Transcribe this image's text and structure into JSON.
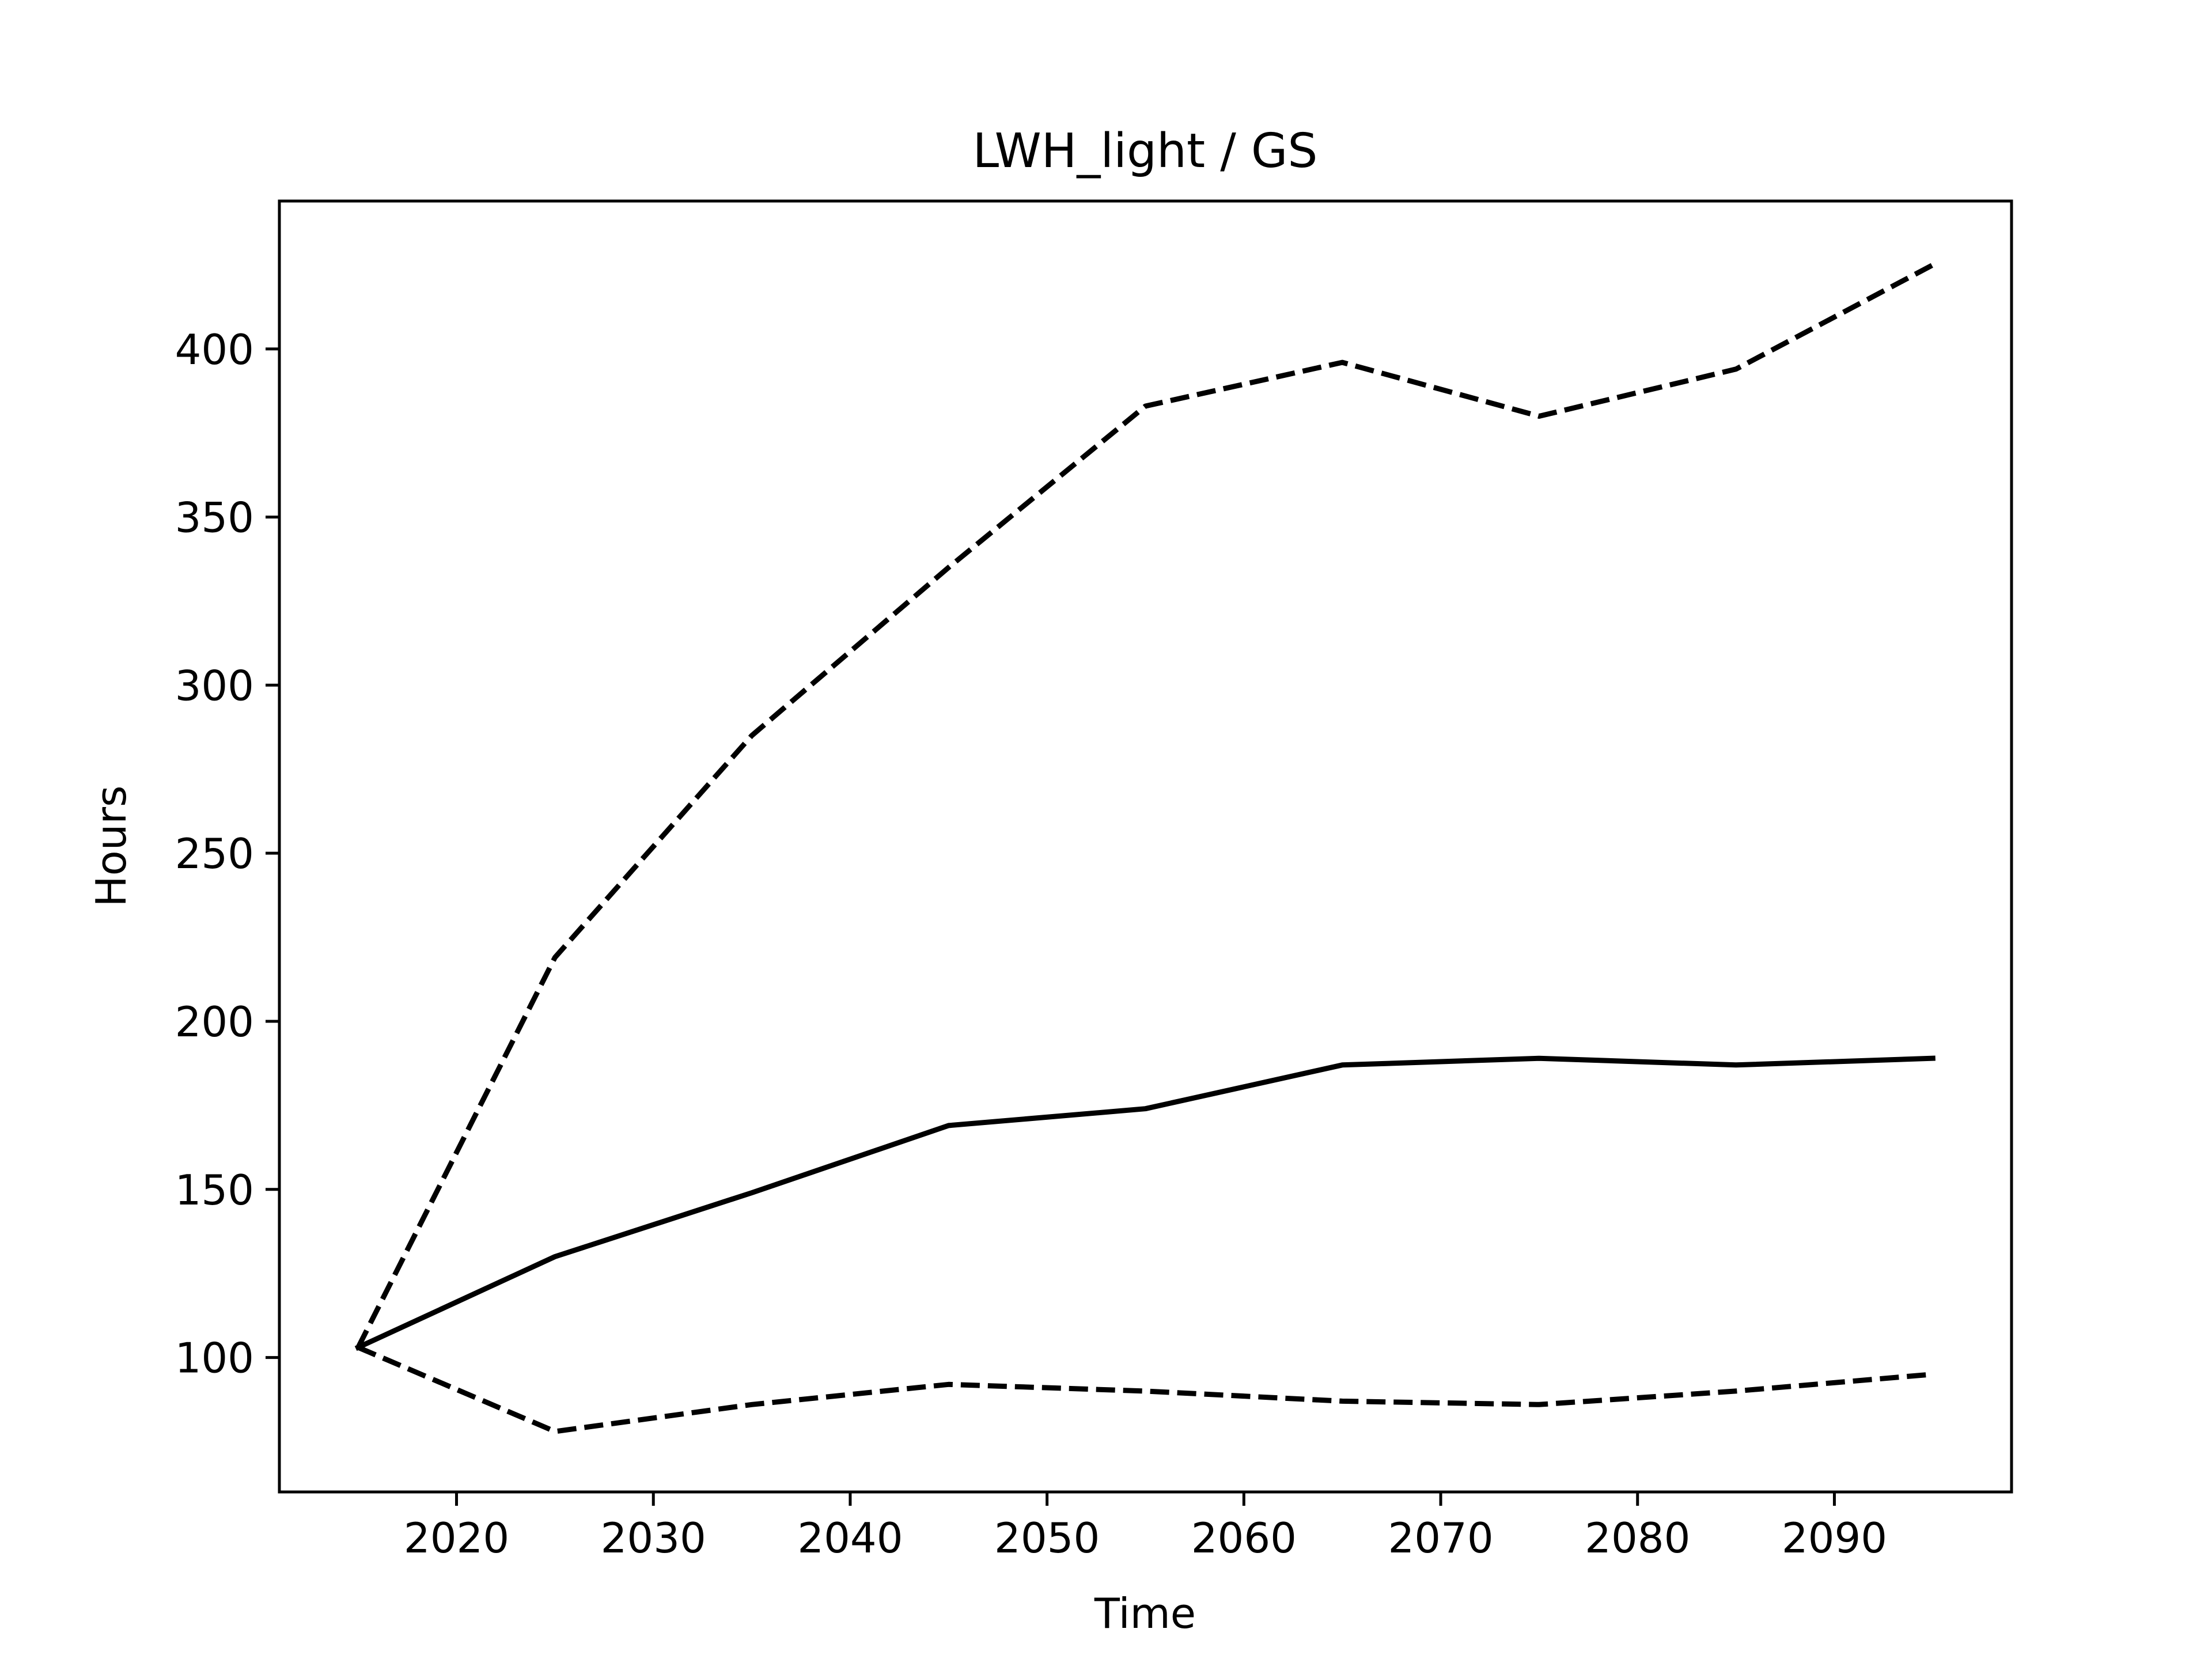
{
  "chart_data": {
    "type": "line",
    "title": "LWH_light / GS",
    "xlabel": "Time",
    "ylabel": "Hours",
    "xlim": [
      2011,
      2099
    ],
    "ylim": [
      60,
      444
    ],
    "xticks": [
      2020,
      2030,
      2040,
      2050,
      2060,
      2070,
      2080,
      2090
    ],
    "yticks": [
      100,
      150,
      200,
      250,
      300,
      350,
      400
    ],
    "grid": false,
    "legend": "none",
    "x": [
      2015,
      2025,
      2035,
      2045,
      2055,
      2065,
      2075,
      2085,
      2095
    ],
    "series": [
      {
        "style": "dashed",
        "color": "#000000",
        "values": [
          103,
          219,
          285,
          335,
          383,
          396,
          380,
          394,
          425
        ]
      },
      {
        "style": "solid",
        "color": "#000000",
        "values": [
          103,
          130,
          149,
          169,
          174,
          187,
          189,
          187,
          189
        ]
      },
      {
        "style": "dashed",
        "color": "#000000",
        "values": [
          103,
          78,
          86,
          92,
          90,
          87,
          86,
          90,
          95
        ]
      }
    ]
  }
}
